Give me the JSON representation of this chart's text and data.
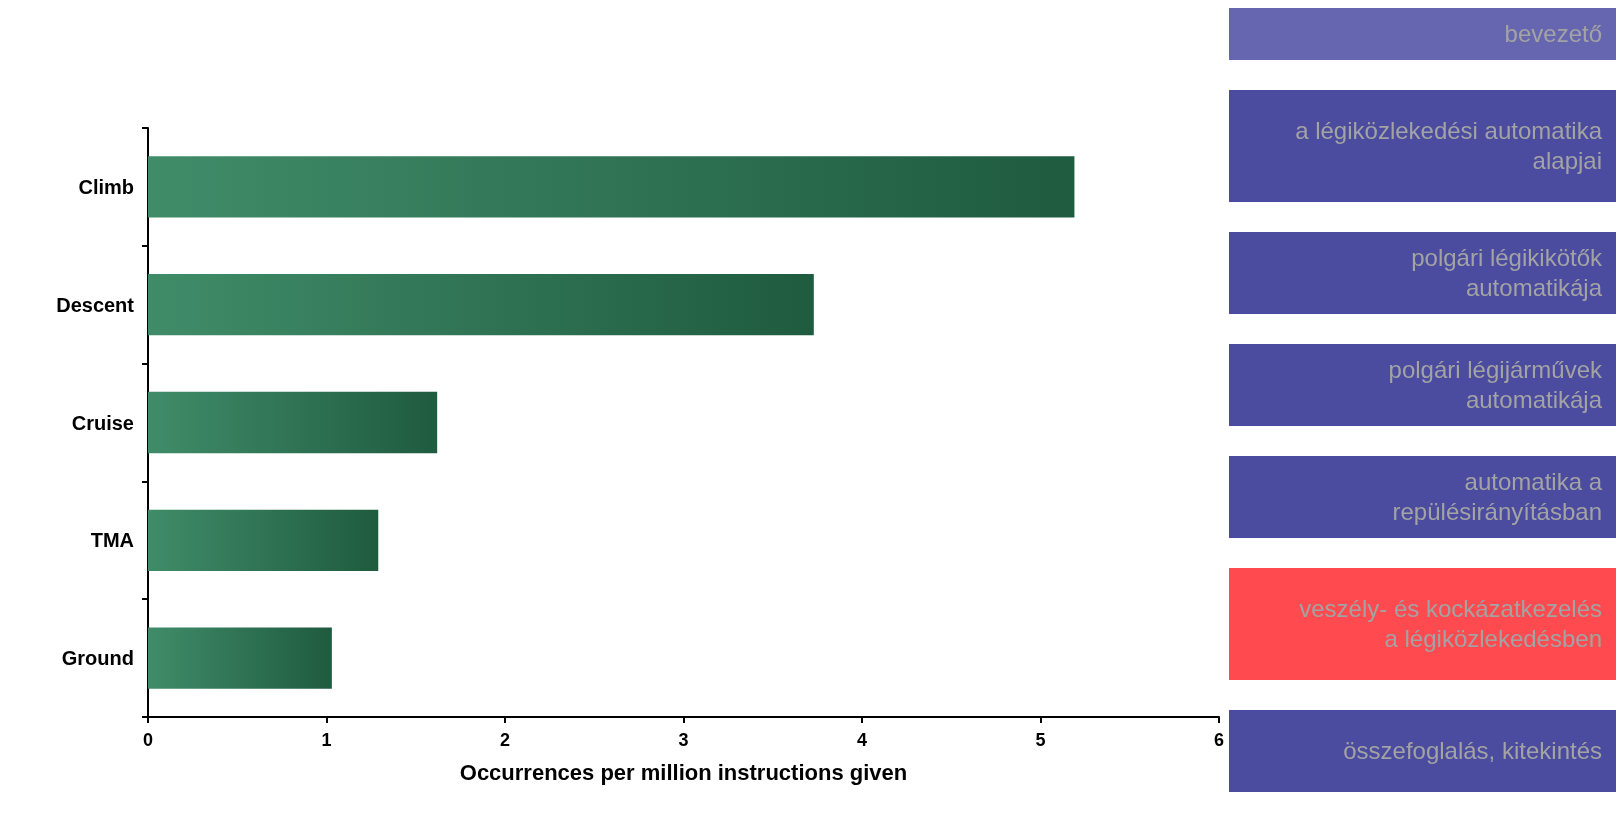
{
  "chart_data": [
    {
      "type": "bar",
      "orientation": "horizontal",
      "categories": [
        "Climb",
        "Descent",
        "Cruise",
        "TMA",
        "Ground"
      ],
      "values": [
        5.19,
        3.73,
        1.62,
        1.29,
        1.03
      ],
      "color": "#2b7f58",
      "xlabel": "Occurrences per million instructions given",
      "xlim": [
        0,
        6
      ],
      "xticks": [
        0,
        1,
        2,
        3,
        4,
        5,
        6
      ]
    },
    {
      "type": "other",
      "categories": [
        "bevezető",
        "a légiközlekedési automatika alapjai",
        "polgári légikikötők automatikája",
        "polgári légijárművek automatikája",
        "automatika a repülésirányításban",
        "veszély- és kockázatkezelés a légiközlekedésben",
        "összefoglalás, kitekintés"
      ],
      "colors": [
        "#6666b0",
        "#4b4ba0",
        "#4b4ba0",
        "#4b4ba0",
        "#4b4ba0",
        "#ff4a4f",
        "#4b4ba0"
      ]
    }
  ]
}
